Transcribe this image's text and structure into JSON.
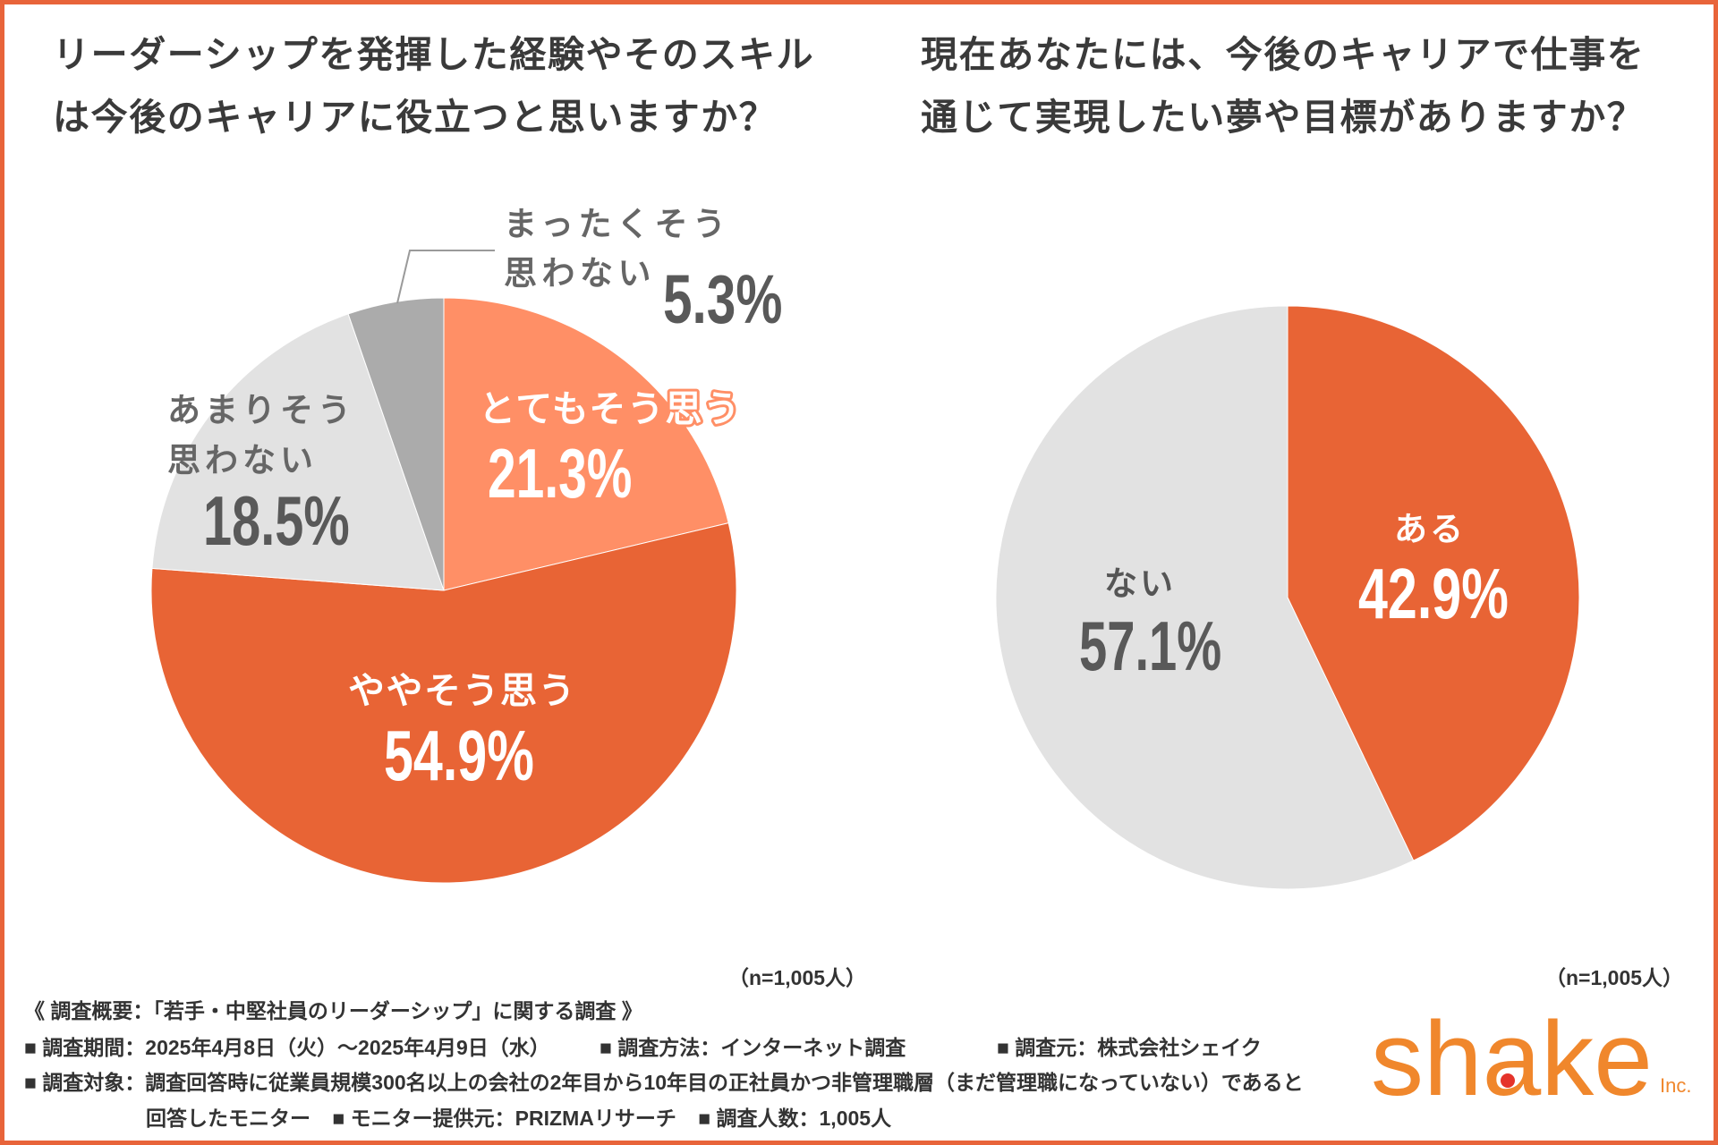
{
  "theme": {
    "border_color": "#E8643A",
    "logo_color": "#F0872C",
    "logo_dot_color": "#E5332A"
  },
  "chart_data": [
    {
      "type": "pie",
      "title_lines": [
        "リーダーシップを発揮した経験やそのスキル",
        "は今後のキャリアに役立つと思いますか？"
      ],
      "categories": [
        "とてもそう思う",
        "ややそう思う",
        "あまりそう\n思わない",
        "まったくそう\n思わない"
      ],
      "values": [
        21.3,
        54.9,
        18.5,
        5.3
      ],
      "unit": "%",
      "colors": [
        "#FF8F66",
        "#E86435",
        "#E2E2E2",
        "#ABABAB"
      ],
      "sample_note": "（n=1,005人）"
    },
    {
      "type": "pie",
      "title_lines": [
        "現在あなたには、今後のキャリアで仕事を",
        "通じて実現したい夢や目標がありますか？"
      ],
      "categories": [
        "ある",
        "ない"
      ],
      "values": [
        42.9,
        57.1
      ],
      "unit": "%",
      "colors": [
        "#E86435",
        "#E2E2E2"
      ],
      "sample_note": "（n=1,005人）"
    }
  ],
  "survey": {
    "heading": "《 調査概要：「若手・中堅社員のリーダーシップ」に関する調査 》",
    "period": "■ 調査期間：2025年4月8日（火）～2025年4月9日（水）",
    "method": "■ 調査方法：インターネット調査",
    "source": "■ 調査元：株式会社シェイク",
    "target_line1": "■ 調査対象：調査回答時に従業員規模300名以上の会社の2年目から10年目の正社員かつ非管理職層（まだ管理職になっていない）であると",
    "target_line2": "回答したモニター",
    "provider": "■ モニター提供元：PRIZMAリサーチ",
    "respondents": "■ 調査人数：1,005人"
  },
  "logo": {
    "text": "shake",
    "suffix": "Inc."
  }
}
